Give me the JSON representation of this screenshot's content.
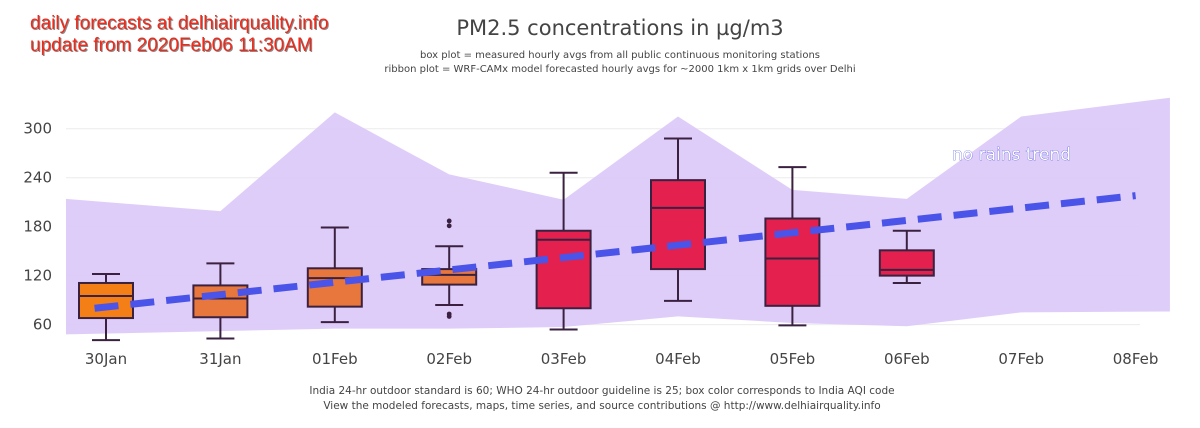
{
  "header": {
    "brand_line1": "daily forecasts at delhiairquality.info",
    "brand_line2": "update from 2020Feb06 11:30AM"
  },
  "footer": {
    "line1": "India 24-hr outdoor standard is 60; WHO 24-hr outdoor guideline is 25; box color corresponds to India AQI code",
    "line2": "View the modeled forecasts, maps, time series, and source contributions @ http://www.delhiairquality.info"
  },
  "chart_data": {
    "type": "box",
    "title": "PM2.5 concentrations in µg/m3",
    "subtitle1": "box plot = measured hourly avgs from all public continuous monitoring stations",
    "subtitle2": "ribbon plot = WRF-CAMx model forecasted hourly avgs for ~2000 1km x 1km grids over Delhi",
    "categories": [
      "30Jan",
      "31Jan",
      "01Feb",
      "02Feb",
      "03Feb",
      "04Feb",
      "05Feb",
      "06Feb",
      "07Feb",
      "08Feb"
    ],
    "y_ticks": [
      60,
      120,
      180,
      240,
      300
    ],
    "ylim": [
      35,
      345
    ],
    "boxes": [
      {
        "day": "30Jan",
        "min": 41,
        "q1": 68,
        "median": 95,
        "q3": 111,
        "max": 122,
        "color": "#f57f17",
        "outliers": []
      },
      {
        "day": "31Jan",
        "min": 43,
        "q1": 69,
        "median": 92,
        "q3": 108,
        "max": 135,
        "color": "#e8773e",
        "outliers": []
      },
      {
        "day": "01Feb",
        "min": 63,
        "q1": 82,
        "median": 117,
        "q3": 129,
        "max": 179,
        "color": "#e8773e",
        "outliers": []
      },
      {
        "day": "02Feb",
        "min": 84,
        "q1": 109,
        "median": 121,
        "q3": 128,
        "max": 156,
        "color": "#e8773e",
        "outliers": [
          187,
          181,
          73,
          70
        ]
      },
      {
        "day": "03Feb",
        "min": 54,
        "q1": 80,
        "median": 164,
        "q3": 175,
        "max": 246,
        "color": "#e3204e",
        "outliers": []
      },
      {
        "day": "04Feb",
        "min": 89,
        "q1": 128,
        "median": 203,
        "q3": 237,
        "max": 288,
        "color": "#e3204e",
        "outliers": []
      },
      {
        "day": "05Feb",
        "min": 59,
        "q1": 83,
        "median": 141,
        "q3": 190,
        "max": 253,
        "color": "#e3204e",
        "outliers": []
      },
      {
        "day": "06Feb",
        "min": 111,
        "q1": 120,
        "median": 127,
        "q3": 151,
        "max": 175,
        "color": "#e3204e",
        "outliers": []
      }
    ],
    "ribbon": {
      "name": "model forecast range",
      "color": "#dcc8f8",
      "x": [
        -0.35,
        1,
        2,
        3,
        4,
        5,
        6,
        7,
        8,
        9.3
      ],
      "upper": [
        214,
        199,
        320,
        244,
        213,
        315,
        225,
        214,
        315,
        338
      ],
      "lower": [
        48,
        52,
        55,
        55,
        57,
        70,
        62,
        58,
        75,
        76
      ]
    },
    "trend": {
      "label": "no rains trend",
      "x": [
        -0.1,
        9
      ],
      "y": [
        80,
        218
      ],
      "color": "#4b54e8"
    }
  }
}
